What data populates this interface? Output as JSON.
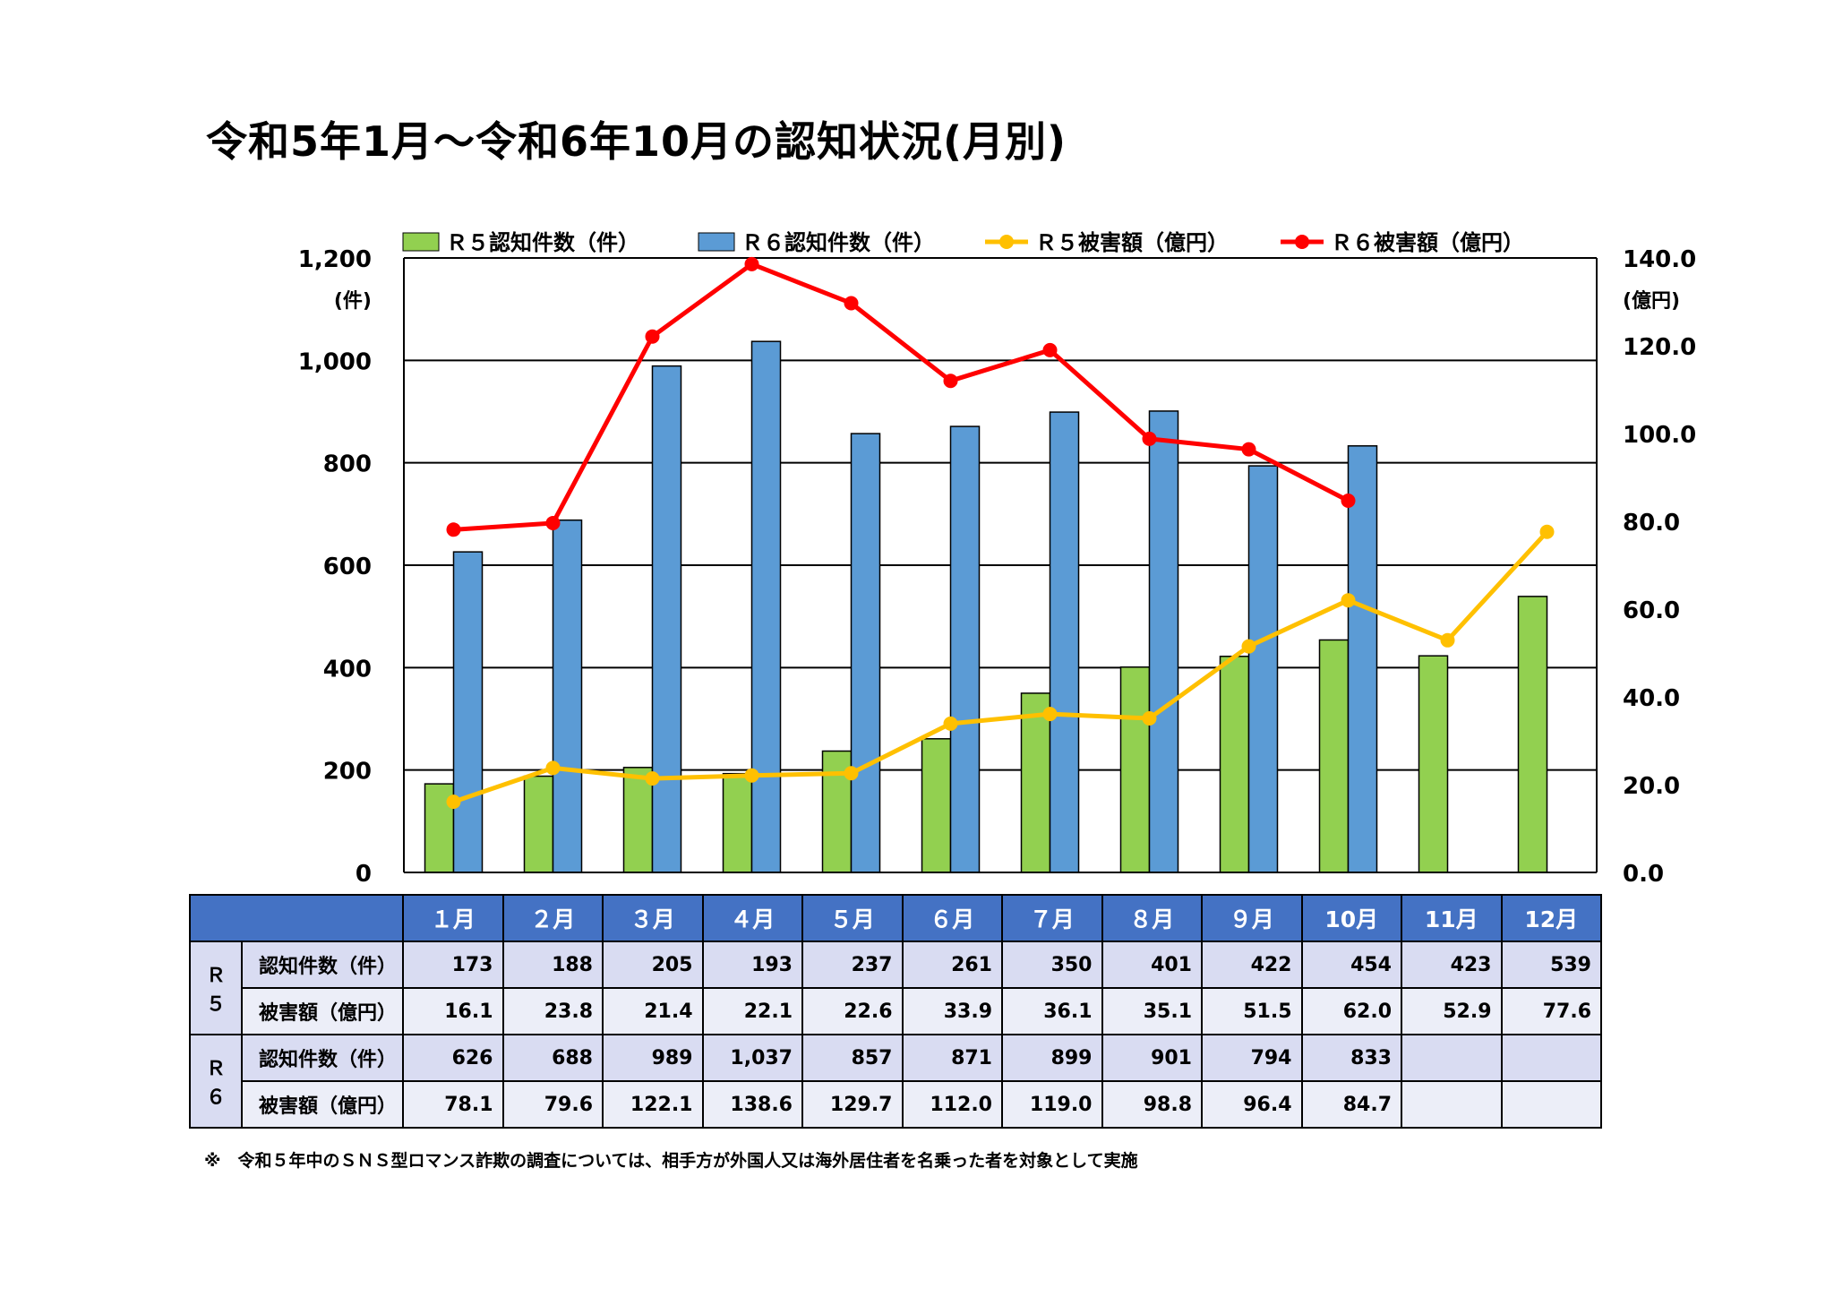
{
  "title": "令和5年1月～令和6年10月の認知状況(月別)",
  "footnote": "※　令和５年中のＳＮＳ型ロマンス詐欺の調査については、相手方が外国人又は海外居住者を名乗った者を対象として実施",
  "colors": {
    "r5_bar": "#92d050",
    "r6_bar": "#5b9bd5",
    "r5_line": "#ffc000",
    "r6_line": "#ff0000",
    "table_header": "#4472c4"
  },
  "chart_data": {
    "type": "bar",
    "categories": [
      "1月",
      "2月",
      "3月",
      "4月",
      "5月",
      "6月",
      "7月",
      "8月",
      "9月",
      "10月",
      "11月",
      "12月"
    ],
    "y_left": {
      "unit": "(件)",
      "ylim": [
        0,
        1200
      ],
      "ticks": [
        "0",
        "200",
        "400",
        "600",
        "800",
        "1,000",
        "1,200"
      ]
    },
    "y_right": {
      "unit": "(億円)",
      "ylim": [
        0,
        140
      ],
      "ticks": [
        "0.0",
        "20.0",
        "40.0",
        "60.0",
        "80.0",
        "100.0",
        "120.0",
        "140.0"
      ]
    },
    "grid": true,
    "legend_position": "top",
    "series": [
      {
        "name": "Ｒ５認知件数（件）",
        "kind": "bar",
        "axis": "left",
        "color": "#92d050",
        "values": [
          173,
          188,
          205,
          193,
          237,
          261,
          350,
          401,
          422,
          454,
          423,
          539
        ]
      },
      {
        "name": "Ｒ６認知件数（件）",
        "kind": "bar",
        "axis": "left",
        "color": "#5b9bd5",
        "values": [
          626,
          688,
          989,
          1037,
          857,
          871,
          899,
          901,
          794,
          833,
          null,
          null
        ]
      },
      {
        "name": "Ｒ５被害額（億円）",
        "kind": "line",
        "axis": "right",
        "color": "#ffc000",
        "values": [
          16.1,
          23.8,
          21.4,
          22.1,
          22.6,
          33.9,
          36.1,
          35.1,
          51.5,
          62.0,
          52.9,
          77.6
        ]
      },
      {
        "name": "Ｒ６被害額（億円）",
        "kind": "line",
        "axis": "right",
        "color": "#ff0000",
        "values": [
          78.1,
          79.6,
          122.1,
          138.6,
          129.7,
          112.0,
          119.0,
          98.8,
          96.4,
          84.7,
          null,
          null
        ]
      }
    ]
  },
  "table": {
    "months": [
      "１月",
      "２月",
      "３月",
      "４月",
      "５月",
      "６月",
      "７月",
      "８月",
      "９月",
      "10月",
      "11月",
      "12月"
    ],
    "groups": [
      {
        "label": "Ｒ５",
        "rows": [
          {
            "label": "認知件数（件）",
            "cells": [
              "173",
              "188",
              "205",
              "193",
              "237",
              "261",
              "350",
              "401",
              "422",
              "454",
              "423",
              "539"
            ]
          },
          {
            "label": "被害額（億円）",
            "cells": [
              "16.1",
              "23.8",
              "21.4",
              "22.1",
              "22.6",
              "33.9",
              "36.1",
              "35.1",
              "51.5",
              "62.0",
              "52.9",
              "77.6"
            ]
          }
        ]
      },
      {
        "label": "Ｒ６",
        "rows": [
          {
            "label": "認知件数（件）",
            "cells": [
              "626",
              "688",
              "989",
              "1,037",
              "857",
              "871",
              "899",
              "901",
              "794",
              "833",
              "",
              ""
            ]
          },
          {
            "label": "被害額（億円）",
            "cells": [
              "78.1",
              "79.6",
              "122.1",
              "138.6",
              "129.7",
              "112.0",
              "119.0",
              "98.8",
              "96.4",
              "84.7",
              "",
              ""
            ]
          }
        ]
      }
    ]
  }
}
